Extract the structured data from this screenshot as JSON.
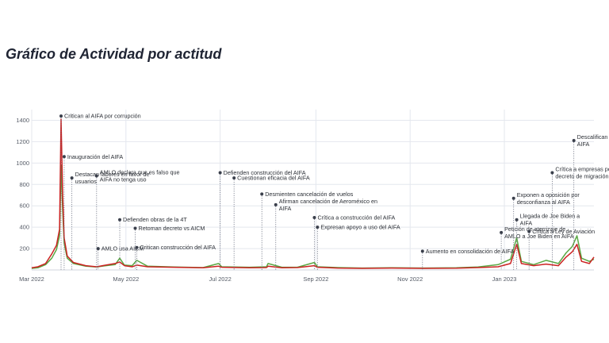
{
  "page": {
    "title": "Gráfico de Actividad por actitud"
  },
  "chart_data": {
    "type": "line",
    "title": "",
    "xlabel": "",
    "ylabel": "",
    "x_range": [
      "2022-03-01",
      "2023-02-28"
    ],
    "ylim": [
      0,
      1500
    ],
    "grid": true,
    "legend": "none",
    "x_ticks": [
      {
        "date": "2022-03-01",
        "label": "Mar 2022"
      },
      {
        "date": "2022-05-01",
        "label": "May 2022"
      },
      {
        "date": "2022-07-01",
        "label": "Jul 2022"
      },
      {
        "date": "2022-09-01",
        "label": "Sep 2022"
      },
      {
        "date": "2022-11-01",
        "label": "Nov 2022"
      },
      {
        "date": "2023-01-01",
        "label": "Jan 2023"
      }
    ],
    "y_ticks": [
      200,
      400,
      600,
      800,
      1000,
      1200,
      1400
    ],
    "series": [
      {
        "color": "#cc2222",
        "points": [
          [
            "2022-03-01",
            20
          ],
          [
            "2022-03-05",
            30
          ],
          [
            "2022-03-10",
            60
          ],
          [
            "2022-03-14",
            150
          ],
          [
            "2022-03-17",
            230
          ],
          [
            "2022-03-19",
            380
          ],
          [
            "2022-03-20",
            1410
          ],
          [
            "2022-03-21",
            700
          ],
          [
            "2022-03-22",
            300
          ],
          [
            "2022-03-24",
            130
          ],
          [
            "2022-03-28",
            70
          ],
          [
            "2022-04-05",
            40
          ],
          [
            "2022-04-12",
            30
          ],
          [
            "2022-04-18",
            45
          ],
          [
            "2022-04-24",
            60
          ],
          [
            "2022-04-27",
            75
          ],
          [
            "2022-04-30",
            40
          ],
          [
            "2022-05-05",
            30
          ],
          [
            "2022-05-08",
            45
          ],
          [
            "2022-05-15",
            30
          ],
          [
            "2022-06-01",
            25
          ],
          [
            "2022-06-20",
            20
          ],
          [
            "2022-06-30",
            35
          ],
          [
            "2022-07-02",
            25
          ],
          [
            "2022-07-20",
            20
          ],
          [
            "2022-07-31",
            22
          ],
          [
            "2022-08-01",
            35
          ],
          [
            "2022-08-10",
            20
          ],
          [
            "2022-08-20",
            22
          ],
          [
            "2022-08-31",
            40
          ],
          [
            "2022-09-02",
            25
          ],
          [
            "2022-09-15",
            18
          ],
          [
            "2022-10-01",
            15
          ],
          [
            "2022-10-20",
            18
          ],
          [
            "2022-11-10",
            15
          ],
          [
            "2022-12-01",
            16
          ],
          [
            "2022-12-15",
            22
          ],
          [
            "2022-12-28",
            30
          ],
          [
            "2023-01-05",
            60
          ],
          [
            "2023-01-09",
            240
          ],
          [
            "2023-01-12",
            60
          ],
          [
            "2023-01-20",
            40
          ],
          [
            "2023-01-28",
            55
          ],
          [
            "2023-02-05",
            40
          ],
          [
            "2023-02-10",
            120
          ],
          [
            "2023-02-14",
            170
          ],
          [
            "2023-02-17",
            240
          ],
          [
            "2023-02-20",
            80
          ],
          [
            "2023-02-25",
            60
          ],
          [
            "2023-02-28",
            120
          ]
        ]
      },
      {
        "color": "#5aa844",
        "points": [
          [
            "2022-03-01",
            15
          ],
          [
            "2022-03-05",
            20
          ],
          [
            "2022-03-10",
            50
          ],
          [
            "2022-03-14",
            110
          ],
          [
            "2022-03-17",
            190
          ],
          [
            "2022-03-19",
            320
          ],
          [
            "2022-03-20",
            980
          ],
          [
            "2022-03-21",
            560
          ],
          [
            "2022-03-22",
            250
          ],
          [
            "2022-03-24",
            110
          ],
          [
            "2022-03-28",
            60
          ],
          [
            "2022-04-05",
            35
          ],
          [
            "2022-04-12",
            28
          ],
          [
            "2022-04-18",
            40
          ],
          [
            "2022-04-24",
            50
          ],
          [
            "2022-04-27",
            110
          ],
          [
            "2022-04-30",
            45
          ],
          [
            "2022-05-05",
            40
          ],
          [
            "2022-05-08",
            90
          ],
          [
            "2022-05-15",
            35
          ],
          [
            "2022-06-01",
            28
          ],
          [
            "2022-06-20",
            22
          ],
          [
            "2022-06-30",
            60
          ],
          [
            "2022-07-02",
            30
          ],
          [
            "2022-07-20",
            25
          ],
          [
            "2022-07-31",
            30
          ],
          [
            "2022-08-01",
            60
          ],
          [
            "2022-08-10",
            25
          ],
          [
            "2022-08-20",
            25
          ],
          [
            "2022-08-31",
            70
          ],
          [
            "2022-09-02",
            30
          ],
          [
            "2022-09-15",
            22
          ],
          [
            "2022-10-01",
            18
          ],
          [
            "2022-10-20",
            20
          ],
          [
            "2022-11-10",
            18
          ],
          [
            "2022-12-01",
            20
          ],
          [
            "2022-12-15",
            28
          ],
          [
            "2022-12-28",
            50
          ],
          [
            "2023-01-05",
            100
          ],
          [
            "2023-01-09",
            300
          ],
          [
            "2023-01-12",
            80
          ],
          [
            "2023-01-20",
            50
          ],
          [
            "2023-01-28",
            90
          ],
          [
            "2023-02-05",
            60
          ],
          [
            "2023-02-10",
            160
          ],
          [
            "2023-02-14",
            220
          ],
          [
            "2023-02-17",
            320
          ],
          [
            "2023-02-20",
            110
          ],
          [
            "2023-02-25",
            80
          ],
          [
            "2023-02-28",
            100
          ]
        ]
      }
    ],
    "annotations": [
      {
        "text": [
          "Critican al AIFA por corrupción"
        ],
        "date": "2022-03-20",
        "y": 1440
      },
      {
        "text": [
          "Inauguración del AIFA"
        ],
        "date": "2022-03-22",
        "y": 1060
      },
      {
        "text": [
          "Destacan labores en favor de",
          "usuarios"
        ],
        "date": "2022-03-27",
        "y": 860
      },
      {
        "text": [
          "AMLO declara que es falso que",
          "AIFA no tenga uso"
        ],
        "date": "2022-04-12",
        "y": 880
      },
      {
        "text": [
          "AMLO usa AICM"
        ],
        "date": "2022-04-13",
        "y": 200
      },
      {
        "text": [
          "Defienden obras de la 4T"
        ],
        "date": "2022-04-27",
        "y": 470
      },
      {
        "text": [
          "Retoman decreto vs AICM"
        ],
        "date": "2022-05-07",
        "y": 390
      },
      {
        "text": [
          "Critican construcción del AIFA"
        ],
        "date": "2022-05-08",
        "y": 210
      },
      {
        "text": [
          "Defienden construcción del AIFA"
        ],
        "date": "2022-07-01",
        "y": 910
      },
      {
        "text": [
          "Cuestionan eficacia del AIFA"
        ],
        "date": "2022-07-10",
        "y": 860
      },
      {
        "text": [
          "Desmienten cancelación de vuelos"
        ],
        "date": "2022-07-28",
        "y": 710
      },
      {
        "text": [
          "Afirman cancelación de Aeroméxico en",
          "AIFA"
        ],
        "date": "2022-08-06",
        "y": 610
      },
      {
        "text": [
          "Crítica a construcción del AIFA"
        ],
        "date": "2022-08-31",
        "y": 490
      },
      {
        "text": [
          "Expresan apoyo a uso del AIFA"
        ],
        "date": "2022-09-02",
        "y": 400
      },
      {
        "text": [
          "Aumento en consolidación de AIFA"
        ],
        "date": "2022-11-09",
        "y": 175
      },
      {
        "text": [
          "Petición de aterrizaje de",
          "AMLO a Joe Biden en AIFA"
        ],
        "date": "2022-12-30",
        "y": 350
      },
      {
        "text": [
          "Exponen a oposición por",
          "desconfianza al AIFA"
        ],
        "date": "2023-01-07",
        "y": 670
      },
      {
        "text": [
          "Llegada de Joe Biden a",
          "AIFA"
        ],
        "date": "2023-01-09",
        "y": 470
      },
      {
        "text": [
          "Crítica a Ley de Aviación"
        ],
        "date": "2023-01-17",
        "y": 360
      },
      {
        "text": [
          "Crítica a empresas por aceptar",
          "decreto de migración a AIFA"
        ],
        "date": "2023-02-01",
        "y": 910
      },
      {
        "text": [
          "Descalifican construcción del",
          "AIFA"
        ],
        "date": "2023-02-15",
        "y": 1210
      }
    ]
  }
}
